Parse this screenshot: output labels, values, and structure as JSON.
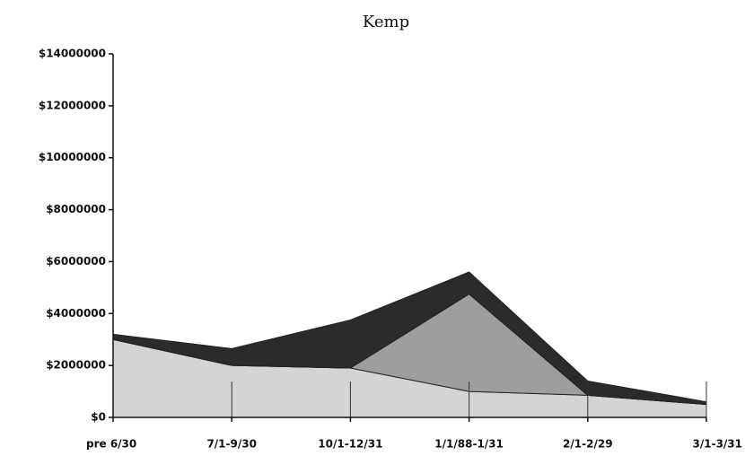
{
  "chart_data": {
    "type": "stacked_area",
    "title": "Kemp",
    "categories": [
      "pre 6/30",
      "7/1-9/30",
      "10/1-12/31",
      "1/1/88-1/31",
      "2/1-2/29",
      "3/1-3/31"
    ],
    "series": [
      {
        "color": "#d4d4d4",
        "values": [
          3000000,
          2000000,
          1900000,
          1000000,
          850000,
          500000
        ]
      },
      {
        "color": "#9e9e9e",
        "values": [
          0,
          0,
          0,
          3750000,
          0,
          0
        ]
      },
      {
        "color": "#2b2b2b",
        "values": [
          200000,
          650000,
          1850000,
          850000,
          550000,
          100000
        ]
      }
    ],
    "ylim": [
      0,
      14000000
    ],
    "yticks": [
      {
        "value": 0,
        "label": "$0"
      },
      {
        "value": 2000000,
        "label": "$2000000"
      },
      {
        "value": 4000000,
        "label": "$4000000"
      },
      {
        "value": 6000000,
        "label": "$6000000"
      },
      {
        "value": 8000000,
        "label": "$8000000"
      },
      {
        "value": 10000000,
        "label": "$10000000"
      },
      {
        "value": 12000000,
        "label": "$12000000"
      },
      {
        "value": 14000000,
        "label": "$14000000"
      }
    ]
  }
}
